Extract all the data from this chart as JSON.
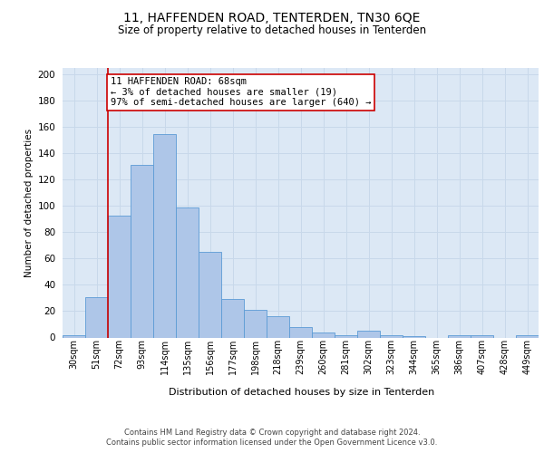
{
  "title": "11, HAFFENDEN ROAD, TENTERDEN, TN30 6QE",
  "subtitle": "Size of property relative to detached houses in Tenterden",
  "xlabel": "Distribution of detached houses by size in Tenterden",
  "ylabel": "Number of detached properties",
  "bar_labels": [
    "30sqm",
    "51sqm",
    "72sqm",
    "93sqm",
    "114sqm",
    "135sqm",
    "156sqm",
    "177sqm",
    "198sqm",
    "218sqm",
    "239sqm",
    "260sqm",
    "281sqm",
    "302sqm",
    "323sqm",
    "344sqm",
    "365sqm",
    "386sqm",
    "407sqm",
    "428sqm",
    "449sqm"
  ],
  "bar_heights": [
    2,
    31,
    93,
    131,
    155,
    99,
    65,
    29,
    21,
    16,
    8,
    4,
    2,
    5,
    2,
    1,
    0,
    2,
    2,
    0,
    2
  ],
  "bar_color": "#aec6e8",
  "bar_edge_color": "#5b9bd5",
  "grid_color": "#c8d8ea",
  "background_color": "#dce8f5",
  "ylim": [
    0,
    205
  ],
  "yticks": [
    0,
    20,
    40,
    60,
    80,
    100,
    120,
    140,
    160,
    180,
    200
  ],
  "property_line_x": 1.5,
  "property_line_color": "#cc0000",
  "annotation_text": "11 HAFFENDEN ROAD: 68sqm\n← 3% of detached houses are smaller (19)\n97% of semi-detached houses are larger (640) →",
  "annotation_box_color": "#ffffff",
  "annotation_box_edge": "#cc0000",
  "footer_line1": "Contains HM Land Registry data © Crown copyright and database right 2024.",
  "footer_line2": "Contains public sector information licensed under the Open Government Licence v3.0."
}
